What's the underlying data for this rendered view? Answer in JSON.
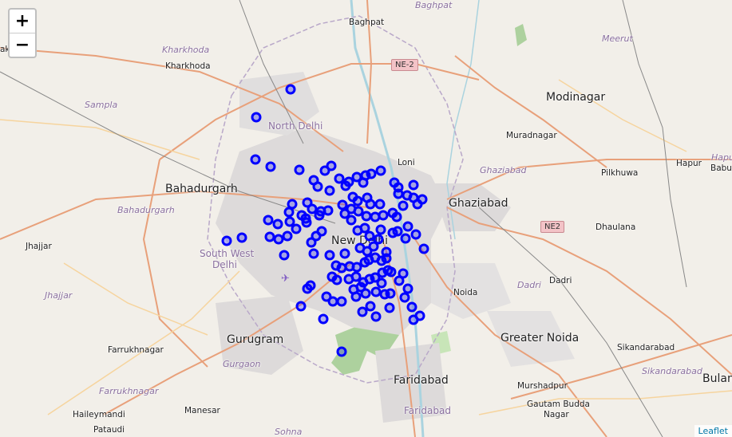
{
  "map": {
    "zoom_in": "+",
    "zoom_out": "−",
    "attribution": "Leaflet",
    "marker_color": "#0000ff",
    "labels": {
      "baghpat": "Baghpat",
      "baghpat_dist": "Baghpat",
      "kharkhoda_dist": "Kharkhoda",
      "kharkhoda": "Kharkhoda",
      "meerut": "Meerut",
      "sampla": "Sampla",
      "north_delhi": "North Delhi",
      "modinagar": "Modinagar",
      "muradnagar": "Muradnagar",
      "loni": "Loni",
      "ghaziabad_dist": "Ghaziabad",
      "hapur": "Hapur",
      "hapur_dist": "Hapu",
      "pilkhuwa": "Pilkhuwa",
      "babug": "Babug",
      "bahadurgarh": "Bahadurgarh",
      "bahadurgarh_dist": "Bahadurgarh",
      "ghaziabad": "Ghaziabad",
      "new_delhi": "New Delhi",
      "jhajjar": "Jhajjar",
      "jhajjar_dist": "Jhajjar",
      "south_west_delhi_1": "South West",
      "south_west_delhi_2": "Delhi",
      "dhaulana": "Dhaulana",
      "dadri_dist": "Dadri",
      "dadri": "Dadri",
      "noida": "Noida",
      "farrukhnagar": "Farrukhnagar",
      "gurugram": "Gurugram",
      "greater_noida": "Greater Noida",
      "sikandarabad": "Sikandarabad",
      "sikandarabad_dist": "Sikandarabad",
      "gurgaon_dist": "Gurgaon",
      "faridabad": "Faridabad",
      "bulan": "Bulan",
      "farrukhnagar_dist": "Farrukhnagar",
      "murshadpur": "Murshadpur",
      "faridabad_dist": "Faridabad",
      "haileymandi": "Haileymandi",
      "manesar": "Manesar",
      "gautam_budda_1": "Gautam Budda",
      "gautam_budda_2": "Nagar",
      "pataudi": "Pataudi",
      "sohna": "Sohna",
      "ak": "ak"
    },
    "shields": {
      "ne2_top": "NE-2",
      "ne2_right": "NE2"
    }
  }
}
